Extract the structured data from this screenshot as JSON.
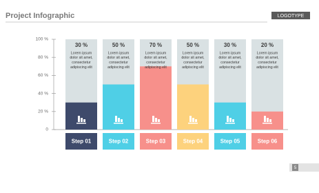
{
  "chart_data": {
    "type": "bar",
    "title": "Project Infographic",
    "logo": "LOGOTYPE",
    "page_number": "5",
    "categories": [
      "Step 01",
      "Step 02",
      "Step 03",
      "Step 04",
      "Step 05",
      "Step 06"
    ],
    "values": [
      30,
      50,
      70,
      50,
      30,
      20
    ],
    "value_labels": [
      "30 %",
      "50 %",
      "70 %",
      "50 %",
      "30 %",
      "20 %"
    ],
    "colors": [
      "#3e4a6b",
      "#4fcfe6",
      "#f7908b",
      "#fdd27d",
      "#4fcfe6",
      "#f7908b"
    ],
    "descriptions": [
      [
        "Lorem ipsum",
        "dolor sit amet,",
        "consectetur",
        "adipiscing elit"
      ],
      [
        "Lorem ipsum",
        "dolor sit amet,",
        "consectetur",
        "adipiscing elit"
      ],
      [
        "Lorem ipsum",
        "dolor sit amet,",
        "consectetur",
        "adipiscing elit"
      ],
      [
        "Lorem ipsum",
        "dolor sit amet,",
        "consectetur",
        "adipiscing elit"
      ],
      [
        "Lorem ipsum",
        "dolor sit amet,",
        "consectetur",
        "adipiscing elit"
      ],
      [
        "Lorem ipsum",
        "dolor sit amet,",
        "consectetur",
        "adipiscing elit"
      ]
    ],
    "ylim": [
      0,
      100
    ],
    "yticks": [
      0,
      {
        "value": 20,
        "label": "20 %"
      },
      {
        "value": 40,
        "label": "40 %"
      },
      {
        "value": 60,
        "label": "60 %"
      },
      {
        "value": 80,
        "label": "80 %"
      },
      {
        "value": 100,
        "label": "100 %"
      }
    ]
  }
}
